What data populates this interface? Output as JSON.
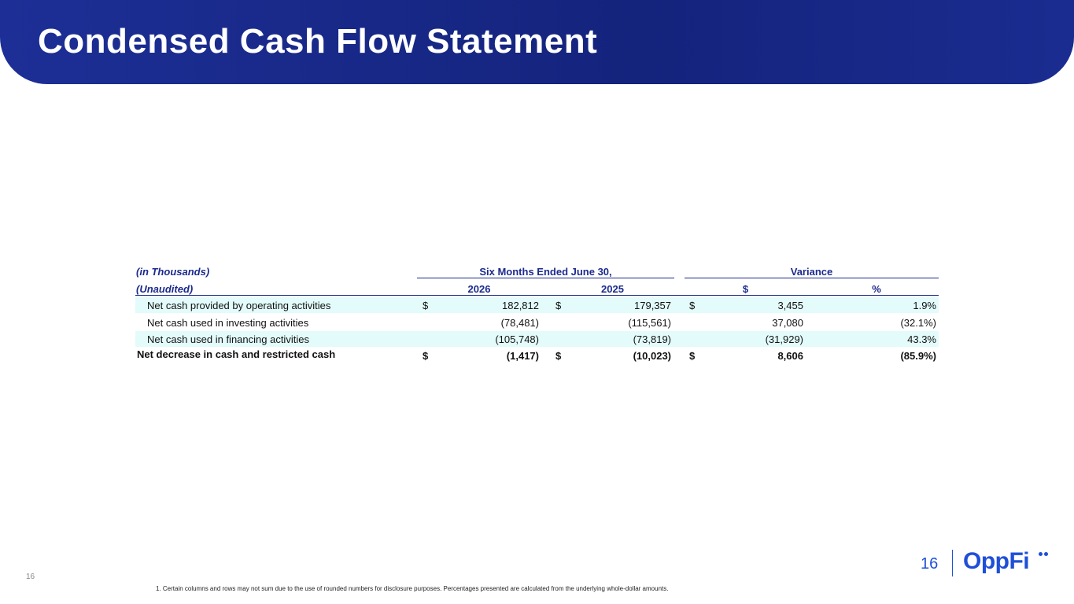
{
  "header": {
    "title": "Condensed Cash Flow Statement"
  },
  "table": {
    "unit_label": "(in Thousands)",
    "status_label": "(Unaudited)",
    "group_headers": [
      "Six Months Ended June 30,",
      "Variance"
    ],
    "column_headers": [
      "2026",
      "2025",
      "$",
      "%"
    ],
    "rows": [
      {
        "label": "Net cash provided by operating activities",
        "cells": [
          {
            "sign": "$",
            "value": "182,812"
          },
          {
            "sign": "$",
            "value": "179,357"
          },
          {
            "sign": "$",
            "value": "3,455"
          },
          {
            "value": "1.9%"
          }
        ]
      },
      {
        "label": "Net cash used in investing activities",
        "cells": [
          {
            "value": "(78,481)"
          },
          {
            "value": "(115,561)"
          },
          {
            "value": "37,080"
          },
          {
            "value": "(32.1%)"
          }
        ]
      },
      {
        "label": "Net cash used in financing activities",
        "cells": [
          {
            "value": "(105,748)"
          },
          {
            "value": "(73,819)"
          },
          {
            "value": "(31,929)"
          },
          {
            "value": "43.3%"
          }
        ]
      },
      {
        "label": "Net decrease in cash and restricted cash",
        "cells": [
          {
            "sign": "$",
            "value": "(1,417)"
          },
          {
            "sign": "$",
            "value": "(10,023)"
          },
          {
            "sign": "$",
            "value": "8,606"
          },
          {
            "value": "(85.9%)"
          }
        ]
      }
    ]
  },
  "footnote": "1.   Certain columns and rows may not sum due to the use of rounded numbers for disclosure purposes. Percentages presented are calculated from the underlying whole-dollar amounts.",
  "page_number": "16",
  "logo": "OppFi"
}
